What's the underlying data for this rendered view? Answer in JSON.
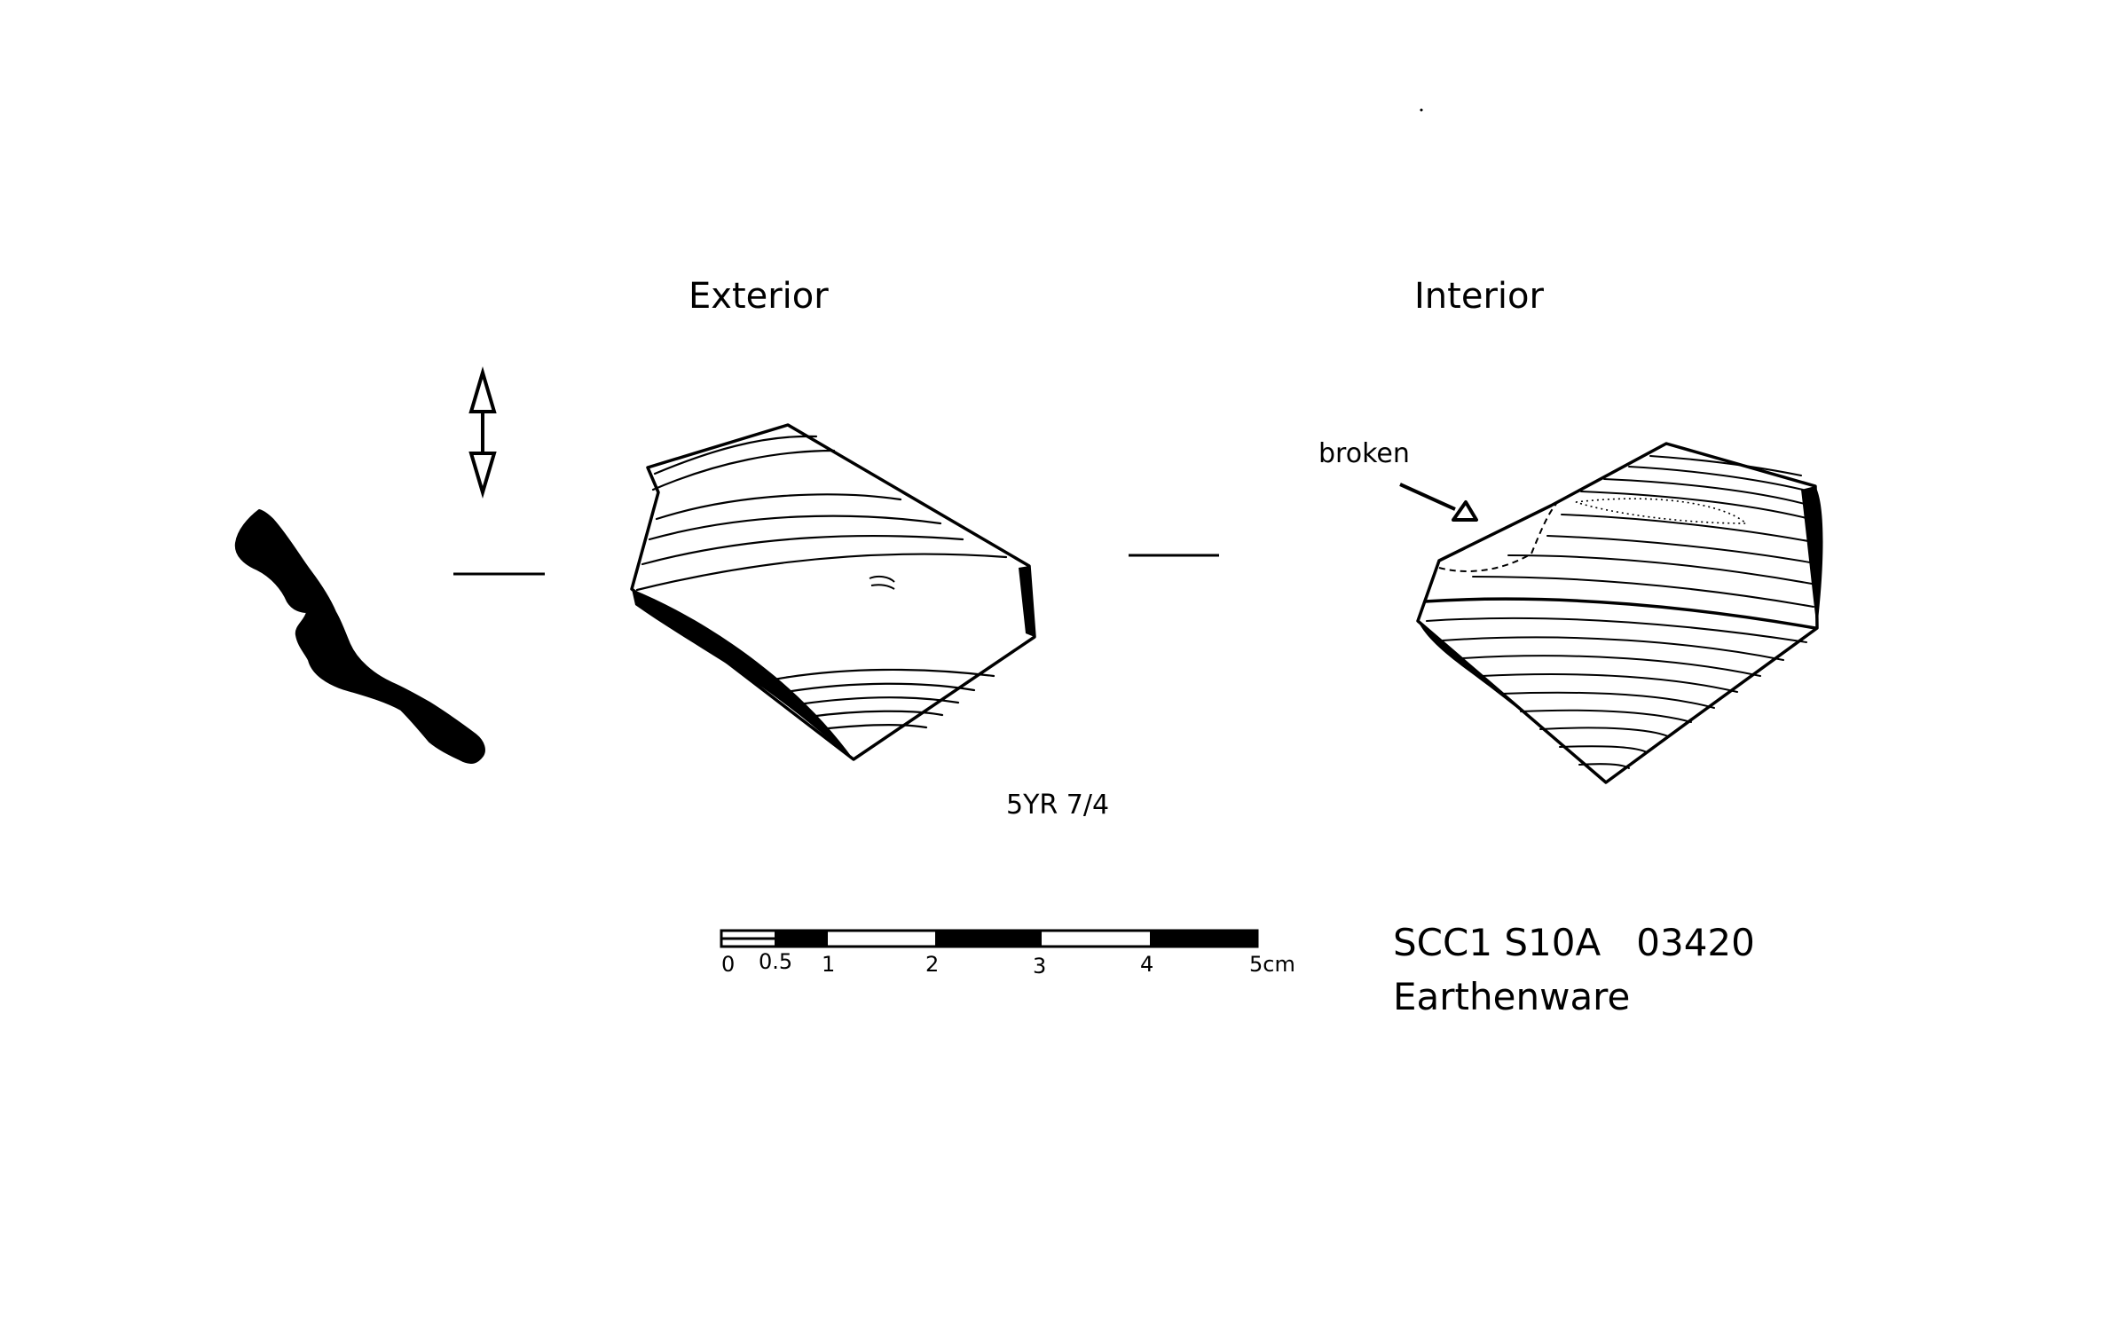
{
  "views": {
    "exterior_label": "Exterior",
    "interior_label": "Interior"
  },
  "annotation": {
    "broken_label": "broken"
  },
  "colour_code": "5YR 7/4",
  "scale_bar": {
    "tick_labels": [
      "0",
      "0.5",
      "1",
      "2",
      "3",
      "4",
      "5cm"
    ]
  },
  "catalog": {
    "id_line": "SCC1 S10A   03420",
    "material": "Earthenware"
  },
  "colors": {
    "ink": "#000000",
    "paper": "#ffffff"
  }
}
